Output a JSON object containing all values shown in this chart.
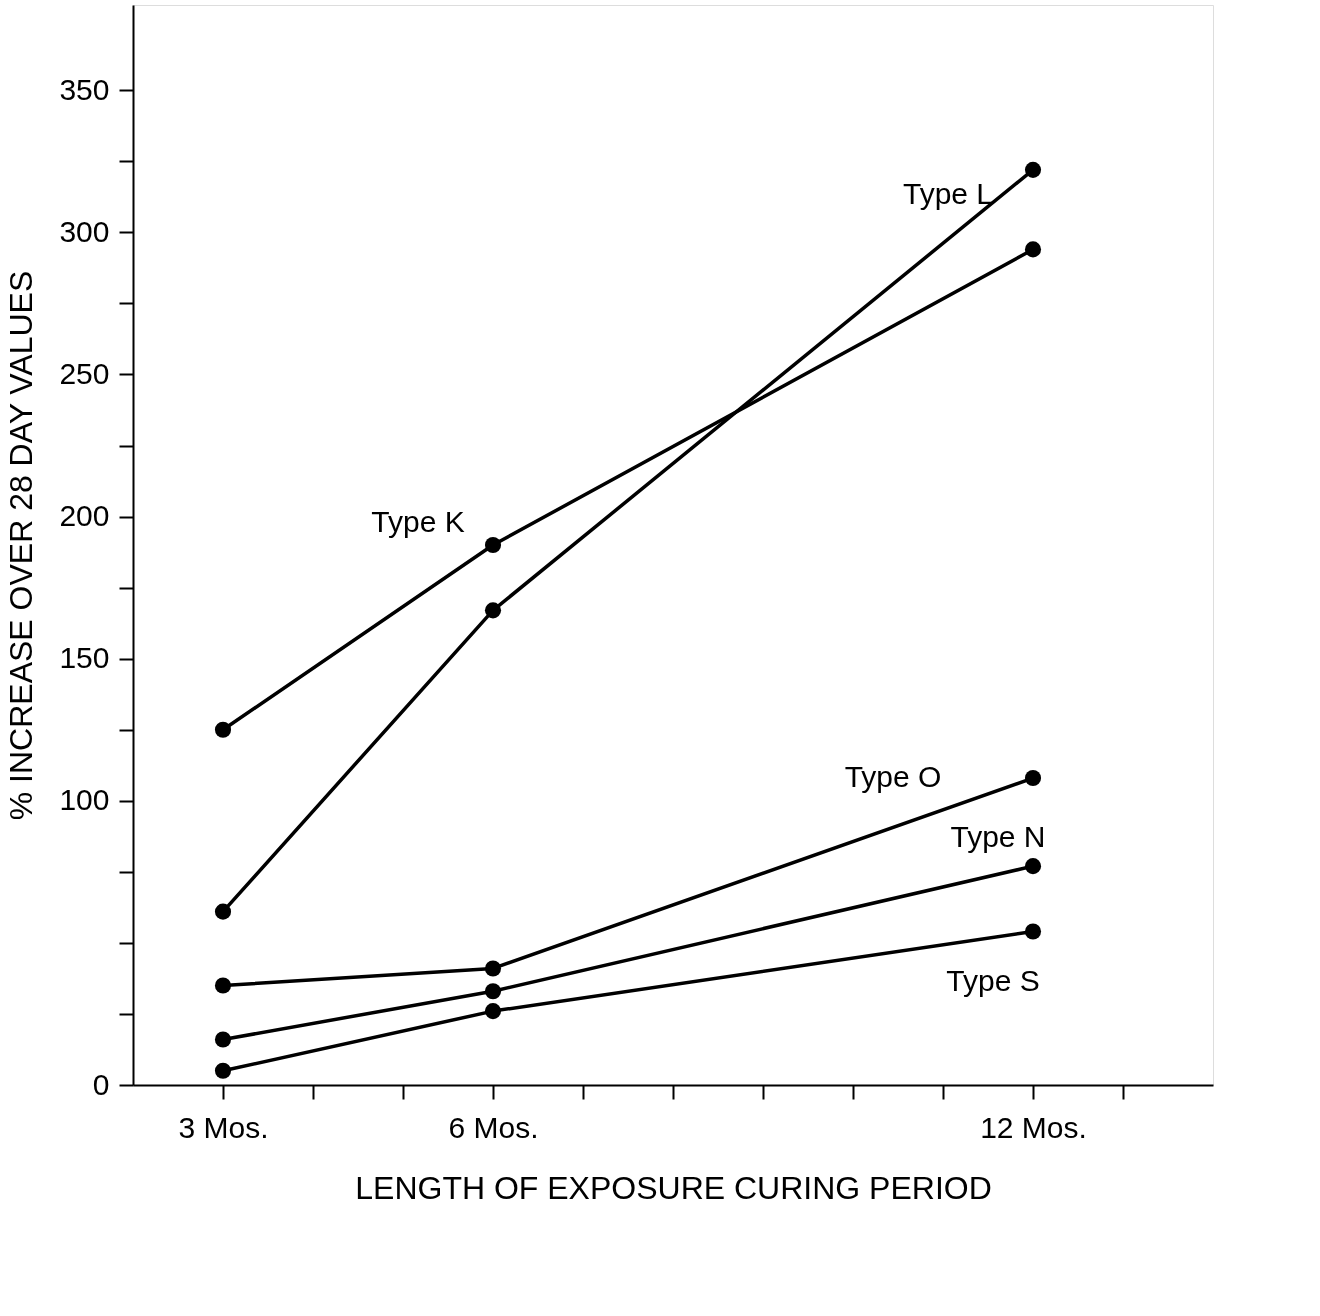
{
  "chart_data": {
    "type": "line",
    "xlabel": "LENGTH OF EXPOSURE CURING PERIOD",
    "ylabel": "% INCREASE OVER 28 DAY VALUES",
    "x": [
      3,
      6,
      12
    ],
    "series": [
      {
        "name": "Type K",
        "color": "#000000",
        "values": [
          125,
          190,
          294
        ]
      },
      {
        "name": "Type L",
        "color": "#000000",
        "values": [
          61,
          167,
          322
        ]
      },
      {
        "name": "Type O",
        "color": "#000000",
        "values": [
          35,
          41,
          108
        ]
      },
      {
        "name": "Type N",
        "color": "#000000",
        "values": [
          16,
          33,
          77
        ]
      },
      {
        "name": "Type S",
        "color": "#000000",
        "values": [
          5,
          26,
          54
        ]
      }
    ],
    "xlim": [
      2,
      14
    ],
    "xticks": [
      {
        "value": 3,
        "label": "3 Mos."
      },
      {
        "value": 4,
        "label": null
      },
      {
        "value": 5,
        "label": null
      },
      {
        "value": 6,
        "label": "6 Mos."
      },
      {
        "value": 7,
        "label": null
      },
      {
        "value": 8,
        "label": null
      },
      {
        "value": 9,
        "label": null
      },
      {
        "value": 10,
        "label": null
      },
      {
        "value": 11,
        "label": null
      },
      {
        "value": 12,
        "label": "12 Mos."
      },
      {
        "value": 13,
        "label": null
      }
    ],
    "ylim": [
      0,
      380
    ],
    "yticks": [
      0,
      {
        "value": 25,
        "label": null
      },
      {
        "value": 50,
        "label": null
      },
      {
        "value": 75,
        "label": null
      },
      100,
      {
        "value": 125,
        "label": null
      },
      150,
      {
        "value": 175,
        "label": null
      },
      200,
      {
        "value": 225,
        "label": null
      },
      250,
      {
        "value": 275,
        "label": null
      },
      300,
      {
        "value": 325,
        "label": null
      },
      350
    ],
    "grid": false,
    "legend": false,
    "marker": "circle",
    "line_style": "solid"
  }
}
